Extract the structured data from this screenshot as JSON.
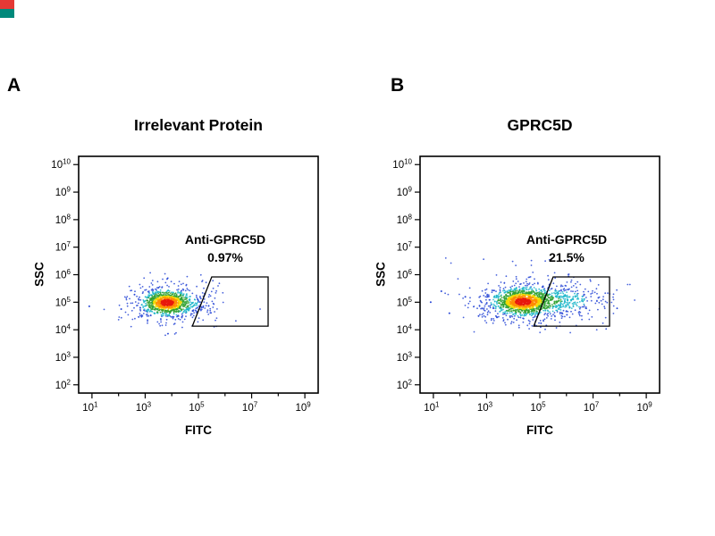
{
  "page": {
    "background": "#ffffff"
  },
  "corner_mark": {
    "top_color": "#e53935",
    "bottom_color": "#00897b"
  },
  "figure": {
    "panels": [
      {
        "panel_label": "A",
        "title": "Irrelevant Protein",
        "xlabel": "FITC",
        "ylabel": "SSC",
        "gate_label": "Anti-GPRC5D",
        "gate_percent": "0.97%"
      },
      {
        "panel_label": "B",
        "title": "GPRC5D",
        "xlabel": "FITC",
        "ylabel": "SSC",
        "gate_label": "Anti-GPRC5D",
        "gate_percent": "21.5%"
      }
    ]
  },
  "chart_data": [
    {
      "type": "scatter",
      "subtype": "flow-cytometry-density",
      "title": "Irrelevant Protein",
      "xlabel": "FITC",
      "ylabel": "SSC",
      "x_scale": "log",
      "y_scale": "log",
      "x_range_exp": [
        0.5,
        9.5
      ],
      "y_range_exp": [
        1.7,
        10.3
      ],
      "x_ticks_labeled_exp": [
        1,
        3,
        5,
        7,
        9
      ],
      "x_ticks_minor_exp": [
        2,
        4,
        6,
        8
      ],
      "y_ticks_labeled_exp": [
        2,
        3,
        4,
        5,
        6,
        7,
        8,
        9,
        10
      ],
      "gate": {
        "label": "Anti-GPRC5D",
        "percent": "0.97%",
        "polygon_exp": [
          [
            4.77,
            4.13
          ],
          [
            7.62,
            4.13
          ],
          [
            7.62,
            5.92
          ],
          [
            5.5,
            5.92
          ]
        ]
      },
      "clusters": [
        {
          "center_exp": [
            3.82,
            4.98
          ],
          "sigma_exp": [
            0.42,
            0.2
          ],
          "count": 1250,
          "halo_fraction": 0.28,
          "halo_scale": 2.2
        },
        {
          "center_exp": [
            4.85,
            4.92
          ],
          "sigma_exp": [
            0.5,
            0.18
          ],
          "count": 55,
          "halo_fraction": 0.3,
          "halo_scale": 1.8
        }
      ],
      "outliers_exp": [
        [
          0.9,
          4.85
        ],
        [
          2.1,
          4.75
        ],
        [
          2.6,
          5.28
        ]
      ],
      "seed": 1337,
      "palette": {
        "stops": [
          {
            "t": 0.85,
            "c": "#e8170d"
          },
          {
            "t": 0.62,
            "c": "#ff8c00"
          },
          {
            "t": 0.45,
            "c": "#f5d800"
          },
          {
            "t": 0.16,
            "c": "#2fa12f"
          },
          {
            "t": 0.055,
            "c": "#18b5c9"
          }
        ],
        "base": "#2746d6"
      }
    },
    {
      "type": "scatter",
      "subtype": "flow-cytometry-density",
      "title": "GPRC5D",
      "xlabel": "FITC",
      "ylabel": "SSC",
      "x_scale": "log",
      "y_scale": "log",
      "x_range_exp": [
        0.5,
        9.5
      ],
      "y_range_exp": [
        1.7,
        10.3
      ],
      "x_ticks_labeled_exp": [
        1,
        3,
        5,
        7,
        9
      ],
      "x_ticks_minor_exp": [
        2,
        4,
        6,
        8
      ],
      "y_ticks_labeled_exp": [
        2,
        3,
        4,
        5,
        6,
        7,
        8,
        9,
        10
      ],
      "gate": {
        "label": "Anti-GPRC5D",
        "percent": "21.5%",
        "polygon_exp": [
          [
            4.77,
            4.13
          ],
          [
            7.62,
            4.13
          ],
          [
            7.62,
            5.92
          ],
          [
            5.5,
            5.92
          ]
        ]
      },
      "clusters": [
        {
          "center_exp": [
            4.35,
            5.02
          ],
          "sigma_exp": [
            0.5,
            0.22
          ],
          "count": 1500,
          "halo_fraction": 0.28,
          "halo_scale": 2.2
        },
        {
          "center_exp": [
            5.7,
            5.05
          ],
          "sigma_exp": [
            0.75,
            0.24
          ],
          "count": 380,
          "halo_fraction": 0.3,
          "halo_scale": 1.9
        }
      ],
      "outliers_exp": [
        [
          0.9,
          5.0
        ],
        [
          1.6,
          4.6
        ],
        [
          2.2,
          5.2
        ],
        [
          2.7,
          4.5
        ],
        [
          1.3,
          5.4
        ]
      ],
      "seed": 4242,
      "palette": {
        "stops": [
          {
            "t": 0.85,
            "c": "#e8170d"
          },
          {
            "t": 0.62,
            "c": "#ff8c00"
          },
          {
            "t": 0.45,
            "c": "#f5d800"
          },
          {
            "t": 0.16,
            "c": "#2fa12f"
          },
          {
            "t": 0.055,
            "c": "#18b5c9"
          }
        ],
        "base": "#2746d6"
      }
    }
  ]
}
